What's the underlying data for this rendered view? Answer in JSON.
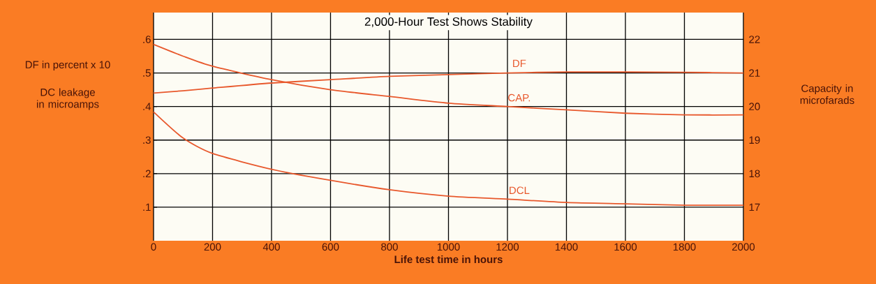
{
  "chart_data": {
    "type": "line",
    "title": "2,000-Hour Test Shows Stability",
    "xlabel": "Life test time in hours",
    "ylabel": "DF in percent x 10",
    "y2label": "Capacity in microfarads",
    "annotations": [
      "DC leakage in microamps"
    ],
    "x": [
      0,
      100,
      200,
      400,
      600,
      800,
      1000,
      1200,
      1400,
      1600,
      1800,
      2000
    ],
    "series": [
      {
        "name": "DF",
        "color": "#e8582c",
        "values": [
          0.44,
          0.447,
          0.455,
          0.47,
          0.48,
          0.49,
          0.495,
          0.5,
          0.503,
          0.503,
          0.502,
          0.5
        ]
      },
      {
        "name": "CAP.",
        "color": "#e8582c",
        "axis": "y2",
        "values": [
          21.85,
          21.5,
          21.2,
          20.8,
          20.5,
          20.3,
          20.1,
          20.0,
          19.9,
          19.8,
          19.75,
          19.75
        ]
      },
      {
        "name": "DCL",
        "color": "#e8582c",
        "values": [
          0.384,
          0.306,
          0.26,
          0.213,
          0.18,
          0.152,
          0.133,
          0.124,
          0.114,
          0.11,
          0.106,
          0.106
        ]
      }
    ],
    "xlim": [
      0,
      2000
    ],
    "xticks": [
      0,
      200,
      400,
      600,
      800,
      1000,
      1200,
      1400,
      1600,
      1800,
      2000
    ],
    "ylim": [
      0,
      0.68
    ],
    "yticks": [
      {
        "value": 0.1,
        "label": ".1"
      },
      {
        "value": 0.2,
        "label": ".2"
      },
      {
        "value": 0.3,
        "label": ".3"
      },
      {
        "value": 0.4,
        "label": ".4"
      },
      {
        "value": 0.5,
        "label": ".5"
      },
      {
        "value": 0.6,
        "label": ".6"
      }
    ],
    "y2lim": [
      16,
      22.8
    ],
    "y2ticks": [
      17,
      18,
      19,
      20,
      21,
      22
    ],
    "grid": true,
    "marker": "none",
    "line_style": "solid"
  }
}
